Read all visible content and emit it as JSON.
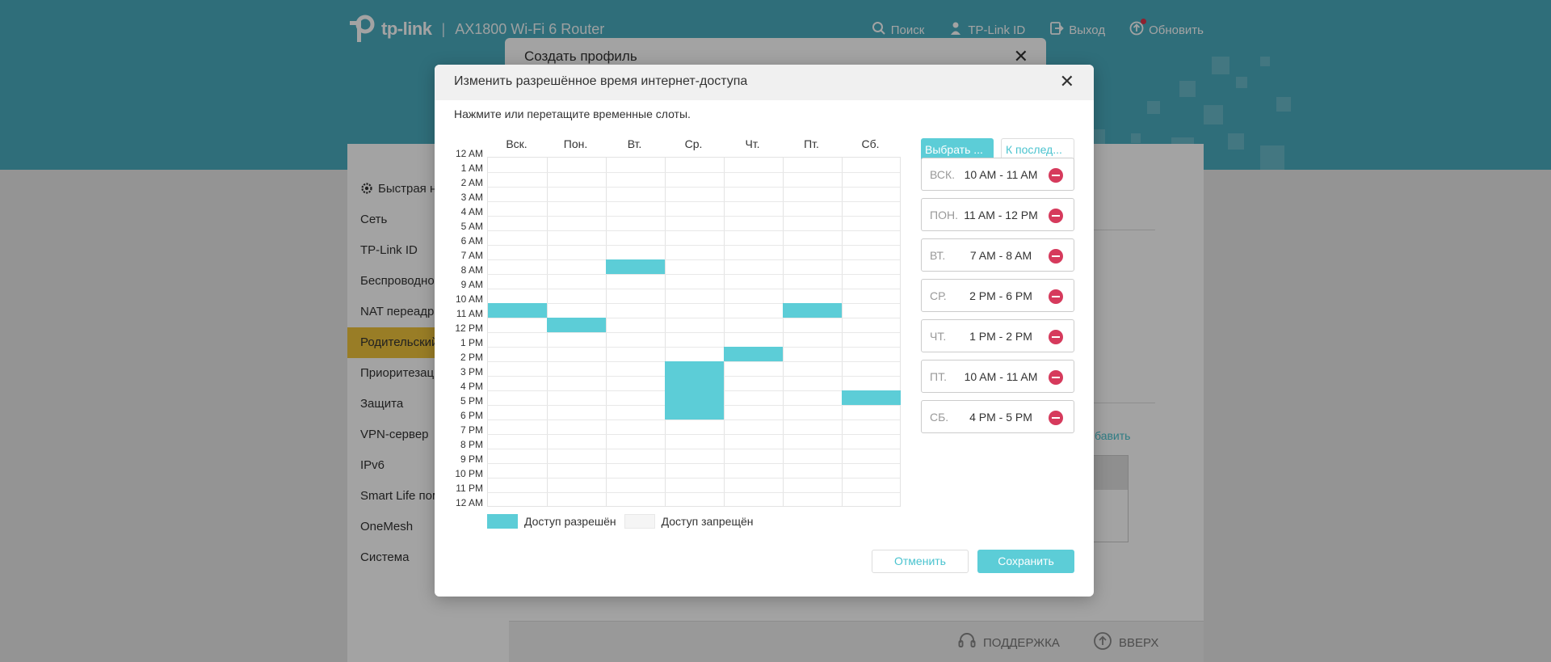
{
  "header": {
    "logo_text": "tp-link",
    "separator": "|",
    "model": "AX1800 Wi-Fi 6 Router",
    "nav": [
      {
        "label": "Поиск",
        "icon": "search-icon"
      },
      {
        "label": "TP-Link ID",
        "icon": "user-icon"
      },
      {
        "label": "Выход",
        "icon": "logout-icon"
      },
      {
        "label": "Обновить",
        "icon": "update-icon"
      }
    ]
  },
  "sidebar": {
    "items": [
      {
        "label": "Быстрая на"
      },
      {
        "label": "Сеть"
      },
      {
        "label": "TP-Link ID"
      },
      {
        "label": "Беспроводной"
      },
      {
        "label": "NAT переадре"
      },
      {
        "label": "Родительский"
      },
      {
        "label": "Приоритезаци"
      },
      {
        "label": "Защита"
      },
      {
        "label": "VPN-сервер"
      },
      {
        "label": "IPv6"
      },
      {
        "label": "Smart Life пом"
      },
      {
        "label": "OneMesh"
      },
      {
        "label": "Система"
      }
    ],
    "active_index": 5
  },
  "background": {
    "add_link": "бавить",
    "footer_support": "ПОДДЕРЖКА",
    "footer_top": "ВВЕРХ"
  },
  "profile_dialog": {
    "title": "Создать профиль",
    "close": "✕"
  },
  "modal": {
    "title": "Изменить разрешённое время интернет-доступа",
    "close": "✕",
    "hint": "Нажмите или перетащите временные слоты.",
    "days": [
      "Вск.",
      "Пон.",
      "Вт.",
      "Ср.",
      "Чт.",
      "Пт.",
      "Сб."
    ],
    "times": [
      "12 AM",
      "1 AM",
      "2 AM",
      "3 AM",
      "4 AM",
      "5 AM",
      "6 AM",
      "7 AM",
      "8 AM",
      "9 AM",
      "10 AM",
      "11 AM",
      "12 PM",
      "1 PM",
      "2 PM",
      "3 PM",
      "4 PM",
      "5 PM",
      "6 PM",
      "7 PM",
      "8 PM",
      "9 PM",
      "10 PM",
      "11 PM",
      "12 AM"
    ],
    "allowed_slots": [
      {
        "day": 0,
        "start": 10,
        "end": 11
      },
      {
        "day": 1,
        "start": 11,
        "end": 12
      },
      {
        "day": 2,
        "start": 7,
        "end": 8
      },
      {
        "day": 3,
        "start": 14,
        "end": 18
      },
      {
        "day": 4,
        "start": 13,
        "end": 14
      },
      {
        "day": 5,
        "start": 10,
        "end": 11
      },
      {
        "day": 6,
        "start": 16,
        "end": 17
      }
    ],
    "legend": {
      "allowed": "Доступ разрешён",
      "denied": "Доступ запрещён"
    },
    "select_button": "Выбрать ...",
    "last_button": "К послед...",
    "entries": [
      {
        "day": "ВСК.",
        "time": "10 AM - 11 AM"
      },
      {
        "day": "ПОН.",
        "time": "11 AM - 12 PM"
      },
      {
        "day": "ВТ.",
        "time": "7 AM - 8 AM"
      },
      {
        "day": "СР.",
        "time": "2 PM - 6 PM"
      },
      {
        "day": "ЧТ.",
        "time": "1 PM - 2 PM"
      },
      {
        "day": "ПТ.",
        "time": "10 AM - 11 AM"
      },
      {
        "day": "СБ.",
        "time": "4 PM - 5 PM"
      }
    ],
    "cancel": "Отменить",
    "save": "Сохранить"
  },
  "colors": {
    "header_teal": "#4aacbf",
    "slot_allowed": "#5ccdd7",
    "active_menu": "#f0c43c",
    "remove_red": "#d63a5c"
  }
}
